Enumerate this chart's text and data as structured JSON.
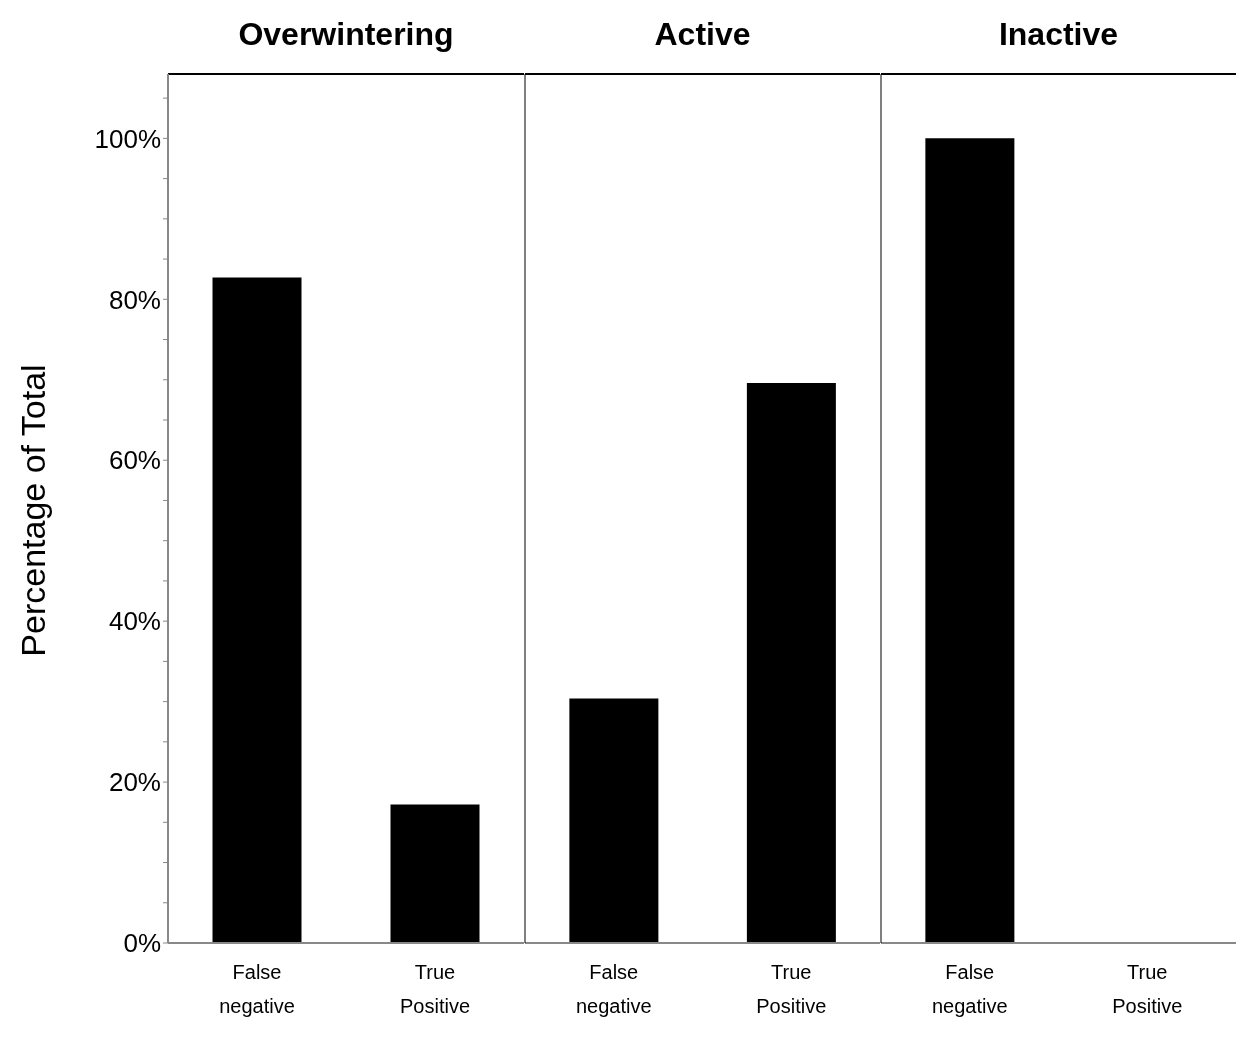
{
  "chart_data": [
    {
      "type": "bar",
      "title": "Overwintering",
      "ylabel": "Percentage of Total",
      "categories": [
        "False negative",
        "True Positive"
      ],
      "values": [
        82.7,
        17.2
      ],
      "color": "#000000",
      "ylim": [
        0,
        108
      ],
      "yticks": [
        {
          "value": 0,
          "label": "0%"
        },
        {
          "value": 5,
          "label": null
        },
        {
          "value": 10,
          "label": null
        },
        {
          "value": 15,
          "label": null
        },
        {
          "value": 20,
          "label": "20%"
        },
        {
          "value": 25,
          "label": null
        },
        {
          "value": 30,
          "label": null
        },
        {
          "value": 35,
          "label": null
        },
        {
          "value": 40,
          "label": "40%"
        },
        {
          "value": 45,
          "label": null
        },
        {
          "value": 50,
          "label": null
        },
        {
          "value": 55,
          "label": null
        },
        {
          "value": 60,
          "label": "60%"
        },
        {
          "value": 65,
          "label": null
        },
        {
          "value": 70,
          "label": null
        },
        {
          "value": 75,
          "label": null
        },
        {
          "value": 80,
          "label": "80%"
        },
        {
          "value": 85,
          "label": null
        },
        {
          "value": 90,
          "label": null
        },
        {
          "value": 95,
          "label": null
        },
        {
          "value": 100,
          "label": "100%"
        },
        {
          "value": 105,
          "label": null
        }
      ],
      "grid": false,
      "legend": false
    },
    {
      "type": "bar",
      "title": "Active",
      "categories": [
        "False negative",
        "True Positive"
      ],
      "values": [
        30.4,
        69.6
      ],
      "color": "#000000",
      "ylim": [
        0,
        108
      ],
      "tick_labels": "x",
      "grid": false,
      "legend": false
    },
    {
      "type": "bar",
      "title": "Inactive",
      "categories": [
        "False negative",
        "True Positive"
      ],
      "values": [
        100,
        0
      ],
      "color": "#000000",
      "ylim": [
        0,
        108
      ],
      "tick_labels": "x",
      "grid": false,
      "legend": false
    }
  ]
}
